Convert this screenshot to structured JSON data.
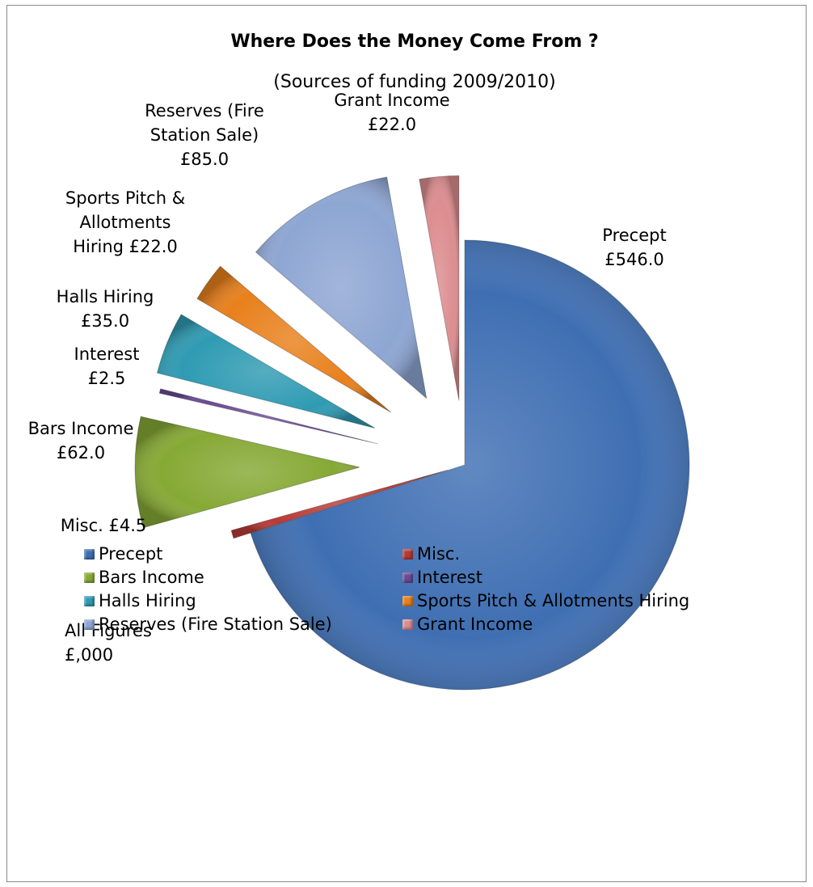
{
  "chart_data": {
    "type": "pie",
    "title": "Where Does the Money Come From ?",
    "subtitle": "(Sources of funding 2009/2010)",
    "note": [
      "All Figures",
      "£,000"
    ],
    "categories": [
      "Precept",
      "Misc.",
      "Bars Income",
      "Interest",
      "Halls Hiring",
      "Sports Pitch & Allotments Hiring",
      "Reserves (Fire Station Sale)",
      "Grant Income"
    ],
    "values": [
      546.0,
      4.5,
      62.0,
      2.5,
      35.0,
      22.0,
      85.0,
      22.0
    ],
    "colors": [
      "#3f6fb3",
      "#b83a36",
      "#86a935",
      "#6b4a96",
      "#2f9bb3",
      "#e8801c",
      "#8ea6d3",
      "#dc8d8f"
    ],
    "data_labels": [
      [
        "Precept",
        "£546.0"
      ],
      [
        "Misc. £4.5"
      ],
      [
        "Bars Income",
        "£62.0"
      ],
      [
        "Interest",
        "£2.5"
      ],
      [
        "Halls Hiring",
        "£35.0"
      ],
      [
        "Sports Pitch &",
        "Allotments",
        "Hiring £22.0"
      ],
      [
        "Reserves (Fire",
        "Station Sale)",
        "£85.0"
      ],
      [
        "Grant Income",
        "£22.0"
      ]
    ],
    "legend_position": "bottom"
  }
}
